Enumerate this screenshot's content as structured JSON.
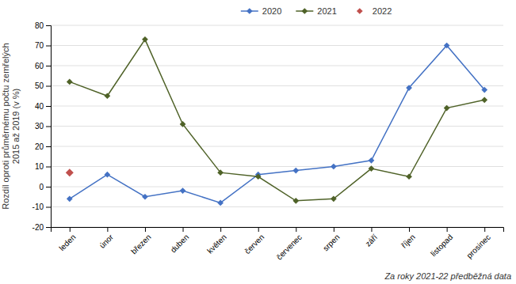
{
  "chart_data": {
    "type": "line",
    "y_label": "Rozdíl oproti průměrnému počtu zemřelých\n2015 až 2019 (v %)",
    "categories": [
      "leden",
      "únor",
      "březen",
      "duben",
      "květen",
      "červen",
      "červenec",
      "srpen",
      "září",
      "říjen",
      "listopad",
      "prosinec"
    ],
    "series": [
      {
        "name": "2020",
        "color": "#4472C4",
        "marker": "diamond",
        "line_style": "solid",
        "values": [
          -6,
          6,
          -5,
          -2,
          -8,
          6,
          8,
          10,
          13,
          49,
          70,
          48
        ]
      },
      {
        "name": "2021",
        "color": "#4F6228",
        "marker": "diamond",
        "line_style": "solid",
        "values": [
          52,
          45,
          73,
          31,
          7,
          5,
          -7,
          -6,
          9,
          5,
          39,
          43
        ]
      },
      {
        "name": "2022",
        "color": "#C0504D",
        "marker": "diamond",
        "line_style": "none",
        "values": [
          7,
          null,
          null,
          null,
          null,
          null,
          null,
          null,
          null,
          null,
          null,
          null
        ]
      }
    ],
    "ylim": [
      -20,
      80
    ],
    "yticks": [
      -20,
      -10,
      0,
      10,
      20,
      30,
      40,
      50,
      60,
      70,
      80
    ],
    "grid": true,
    "legend": "top",
    "annotations": [
      "Za roky 2021-22 předběžná data"
    ]
  }
}
